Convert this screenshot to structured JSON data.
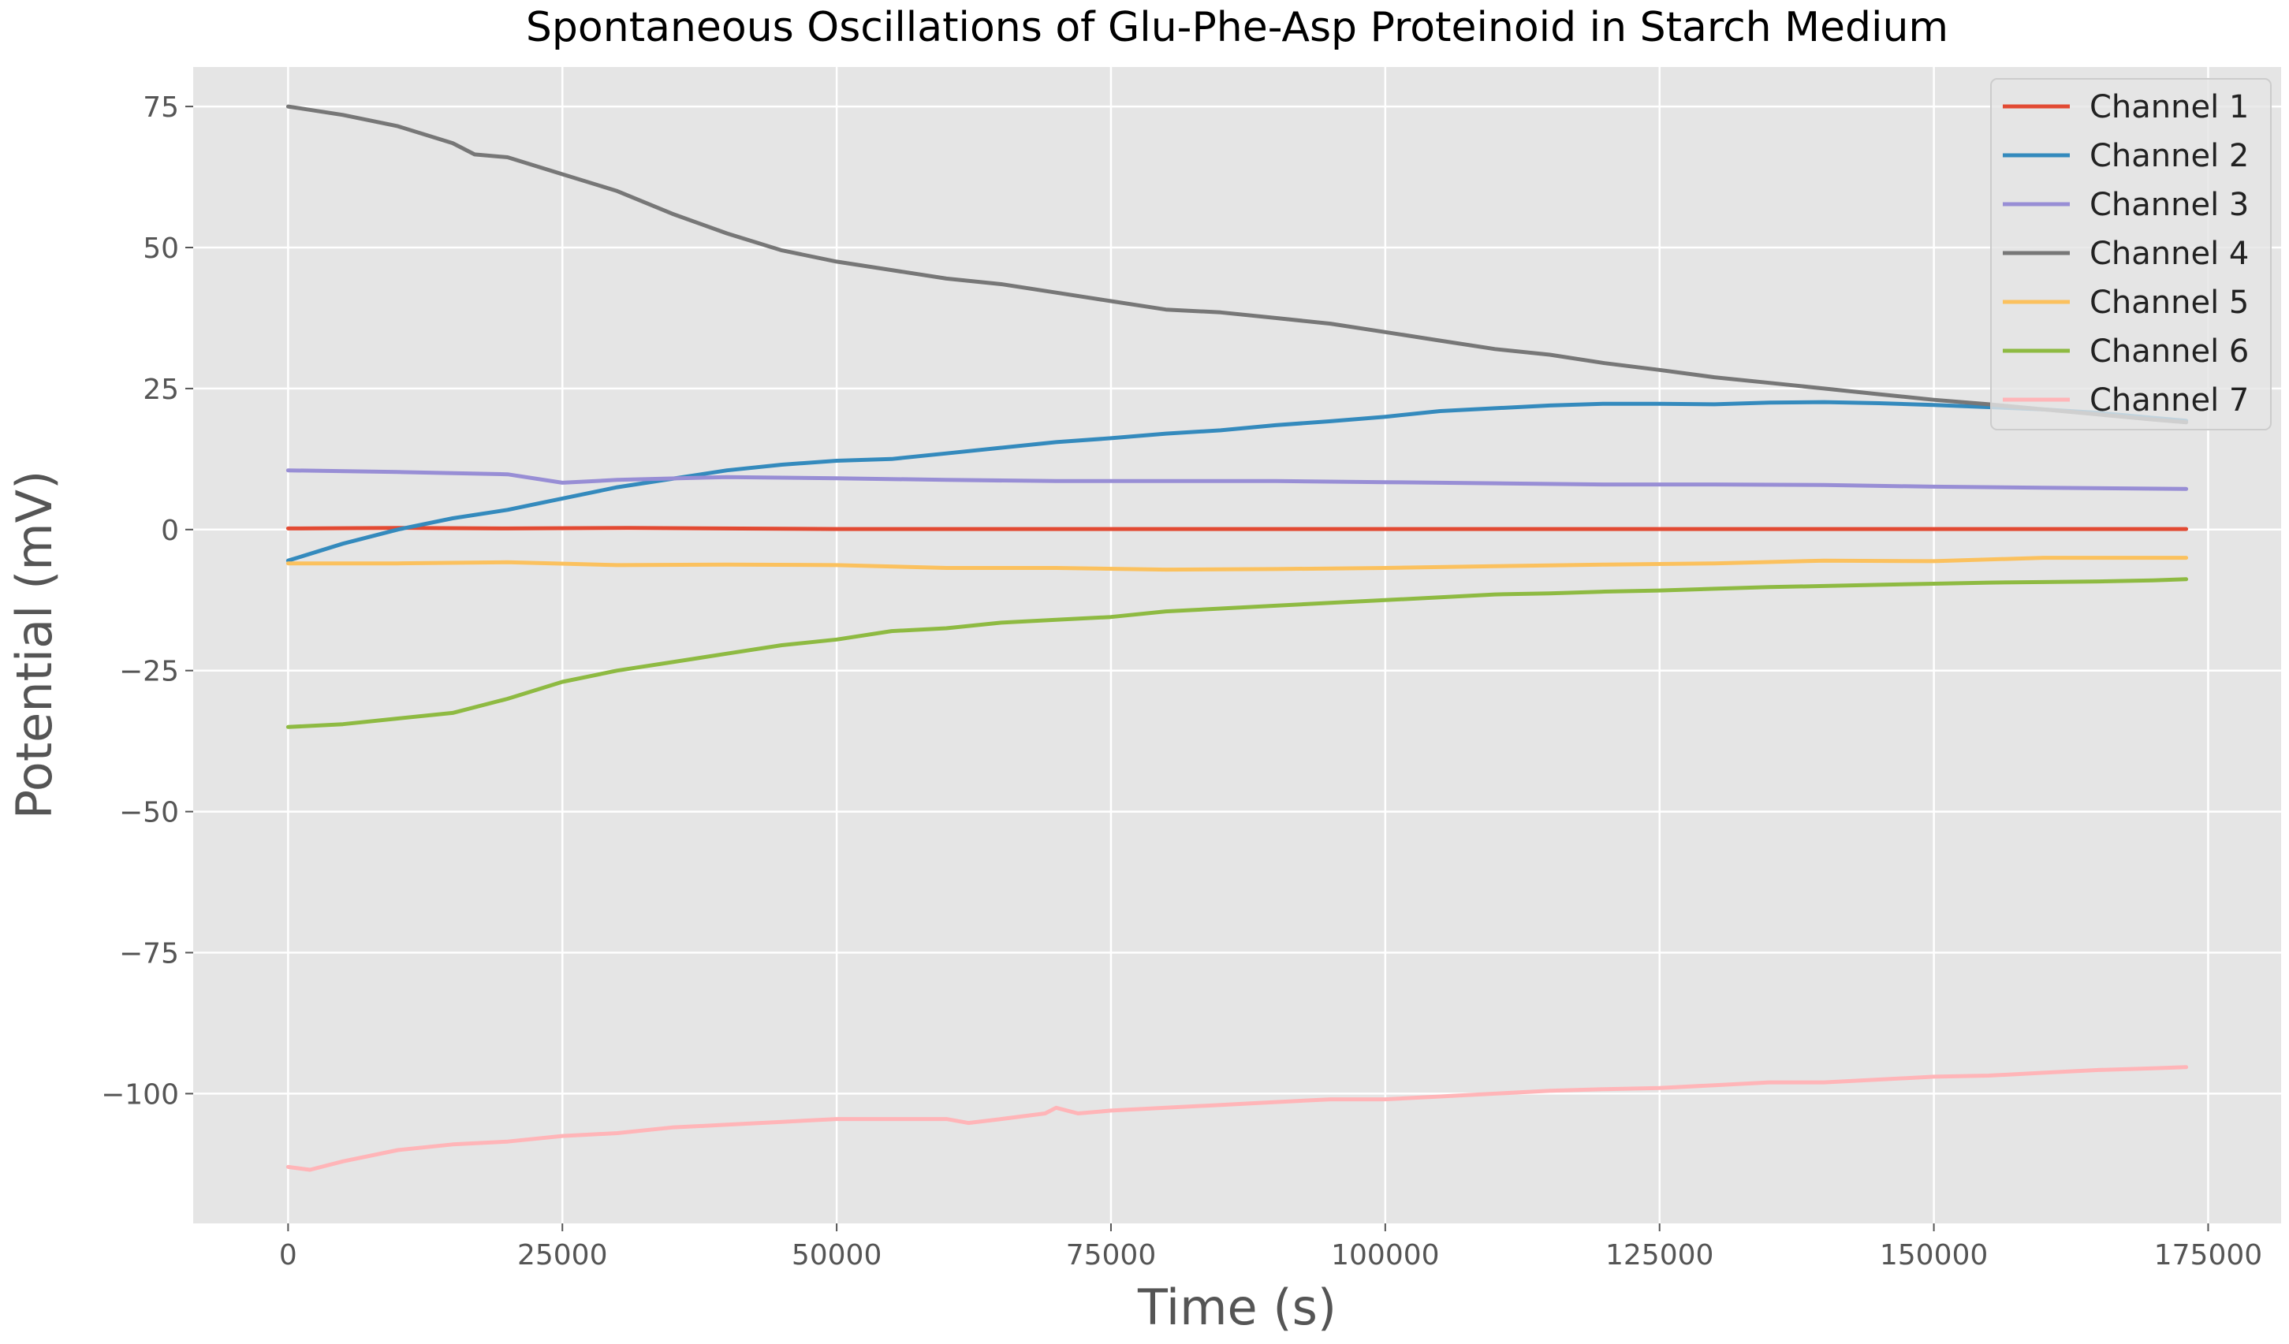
{
  "chart_data": {
    "type": "line",
    "title": "Spontaneous Oscillations of Glu-Phe-Asp Proteinoid in Starch Medium",
    "xlabel": "Time (s)",
    "ylabel": "Potential (mV)",
    "xlim": [
      -8650,
      181650
    ],
    "ylim": [
      -123,
      82
    ],
    "xticks": [
      0,
      25000,
      50000,
      75000,
      100000,
      125000,
      150000,
      175000
    ],
    "yticks": [
      75,
      50,
      25,
      0,
      -25,
      -50,
      -75,
      -100
    ],
    "xtick_labels": [
      "0",
      "25000",
      "50000",
      "75000",
      "100000",
      "125000",
      "150000",
      "175000"
    ],
    "ytick_labels": [
      "75",
      "50",
      "25",
      "0",
      "−25",
      "−50",
      "−75",
      "−100"
    ],
    "grid": true,
    "legend_position": "top-right",
    "colors": {
      "background": "#e5e5e5",
      "grid": "#ffffff"
    },
    "series": [
      {
        "name": "Channel 1",
        "color": "#e24a33",
        "x": [
          0,
          10000,
          20000,
          31000,
          50000,
          100000,
          150000,
          173000
        ],
        "y": [
          0.2,
          0.3,
          0.2,
          0.3,
          0.1,
          0.1,
          0.1,
          0.1
        ]
      },
      {
        "name": "Channel 2",
        "color": "#348abd",
        "x": [
          0,
          5000,
          10000,
          15000,
          20000,
          25000,
          30000,
          35000,
          40000,
          45000,
          50000,
          55000,
          60000,
          65000,
          70000,
          75000,
          80000,
          85000,
          90000,
          95000,
          100000,
          105000,
          110000,
          115000,
          120000,
          125000,
          130000,
          135000,
          140000,
          145000,
          150000,
          155000,
          160000,
          165000,
          170000,
          173000
        ],
        "y": [
          -5.5,
          -2.5,
          0,
          2,
          3.5,
          5.5,
          7.5,
          9,
          10.5,
          11.5,
          12.2,
          12.5,
          13.5,
          14.5,
          15.5,
          16.2,
          17,
          17.6,
          18.5,
          19.2,
          20,
          21,
          21.5,
          22,
          22.3,
          22.3,
          22.2,
          22.5,
          22.6,
          22.4,
          22.1,
          21.7,
          21.3,
          20.7,
          19.8,
          19.3
        ]
      },
      {
        "name": "Channel 3",
        "color": "#988ed5",
        "x": [
          0,
          10000,
          20000,
          25000,
          30000,
          40000,
          50000,
          60000,
          70000,
          80000,
          90000,
          100000,
          110000,
          120000,
          130000,
          140000,
          150000,
          160000,
          173000
        ],
        "y": [
          10.5,
          10.2,
          9.8,
          8.3,
          8.8,
          9.3,
          9.1,
          8.8,
          8.6,
          8.6,
          8.6,
          8.4,
          8.2,
          8.0,
          8.0,
          7.9,
          7.6,
          7.4,
          7.2
        ]
      },
      {
        "name": "Channel 4",
        "color": "#777777",
        "x": [
          0,
          5000,
          10000,
          15000,
          17000,
          20000,
          25000,
          30000,
          35000,
          40000,
          45000,
          50000,
          55000,
          60000,
          65000,
          70000,
          75000,
          80000,
          85000,
          90000,
          95000,
          100000,
          105000,
          110000,
          115000,
          120000,
          125000,
          130000,
          135000,
          140000,
          145000,
          150000,
          155000,
          160000,
          165000,
          170000,
          173000
        ],
        "y": [
          75,
          73.5,
          71.5,
          68.5,
          66.5,
          66,
          63,
          60,
          56,
          52.5,
          49.5,
          47.5,
          46,
          44.5,
          43.5,
          42,
          40.5,
          39,
          38.5,
          37.5,
          36.5,
          35,
          33.5,
          32,
          31,
          29.5,
          28.3,
          27,
          26,
          25,
          24,
          23,
          22.2,
          21.3,
          20.4,
          19.5,
          19
        ]
      },
      {
        "name": "Channel 5",
        "color": "#fbc15e",
        "x": [
          0,
          10000,
          20000,
          30000,
          40000,
          50000,
          60000,
          70000,
          80000,
          90000,
          100000,
          110000,
          120000,
          130000,
          140000,
          150000,
          160000,
          173000
        ],
        "y": [
          -6,
          -6,
          -5.8,
          -6.3,
          -6.2,
          -6.3,
          -6.8,
          -6.8,
          -7.1,
          -7.0,
          -6.8,
          -6.5,
          -6.2,
          -6.0,
          -5.5,
          -5.6,
          -5.0,
          -5.0
        ]
      },
      {
        "name": "Channel 6",
        "color": "#8eba42",
        "x": [
          0,
          5000,
          10000,
          15000,
          20000,
          25000,
          30000,
          35000,
          40000,
          45000,
          50000,
          55000,
          60000,
          65000,
          70000,
          75000,
          80000,
          85000,
          90000,
          95000,
          100000,
          105000,
          110000,
          115000,
          120000,
          125000,
          130000,
          135000,
          140000,
          145000,
          150000,
          155000,
          160000,
          165000,
          170000,
          173000
        ],
        "y": [
          -35,
          -34.5,
          -33.5,
          -32.5,
          -30,
          -27,
          -25,
          -23.5,
          -22,
          -20.5,
          -19.5,
          -18,
          -17.5,
          -16.5,
          -16,
          -15.5,
          -14.5,
          -14,
          -13.5,
          -13,
          -12.5,
          -12,
          -11.5,
          -11.3,
          -11,
          -10.8,
          -10.5,
          -10.2,
          -10,
          -9.8,
          -9.6,
          -9.4,
          -9.3,
          -9.2,
          -9.0,
          -8.8
        ]
      },
      {
        "name": "Channel 7",
        "color": "#ffb5b8",
        "x": [
          0,
          2000,
          5000,
          10000,
          15000,
          20000,
          25000,
          30000,
          35000,
          40000,
          45000,
          50000,
          55000,
          60000,
          62000,
          65000,
          69000,
          70000,
          72000,
          75000,
          80000,
          85000,
          90000,
          95000,
          100000,
          105000,
          110000,
          115000,
          120000,
          125000,
          130000,
          135000,
          140000,
          145000,
          150000,
          155000,
          160000,
          165000,
          170000,
          173000
        ],
        "y": [
          -113,
          -113.5,
          -112,
          -110,
          -109,
          -108.5,
          -107.5,
          -107,
          -106,
          -105.5,
          -105,
          -104.5,
          -104.5,
          -104.5,
          -105.2,
          -104.5,
          -103.5,
          -102.5,
          -103.5,
          -103,
          -102.5,
          -102,
          -101.5,
          -101,
          -101,
          -100.5,
          -100,
          -99.5,
          -99.2,
          -99,
          -98.5,
          -98,
          -98,
          -97.5,
          -97,
          -96.8,
          -96.3,
          -95.8,
          -95.5,
          -95.3
        ]
      }
    ]
  }
}
